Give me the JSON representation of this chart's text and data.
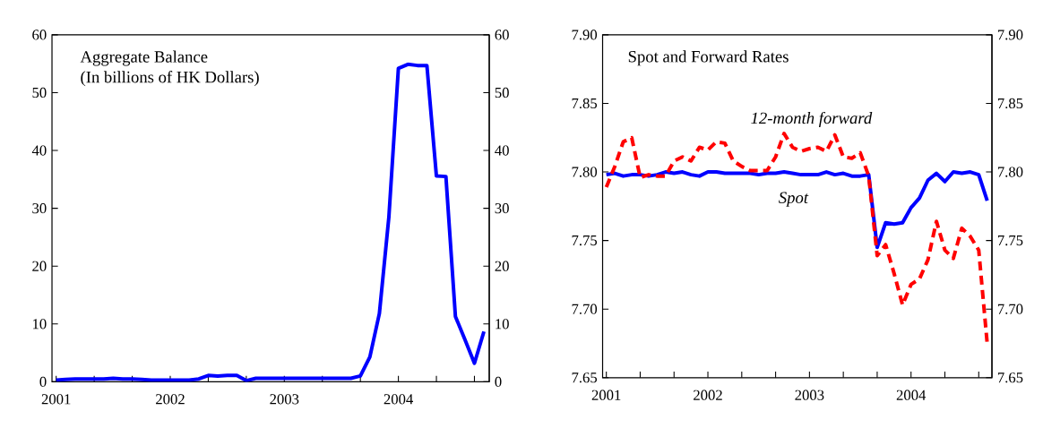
{
  "chart_data": [
    {
      "type": "line",
      "title": "Aggregate Balance",
      "subtitle": "(In billions of HK Dollars)",
      "x": [
        "2001-01",
        "2001-02",
        "2001-03",
        "2001-04",
        "2001-05",
        "2001-06",
        "2001-07",
        "2001-08",
        "2001-09",
        "2001-10",
        "2001-11",
        "2001-12",
        "2002-01",
        "2002-02",
        "2002-03",
        "2002-04",
        "2002-05",
        "2002-06",
        "2002-07",
        "2002-08",
        "2002-09",
        "2002-10",
        "2002-11",
        "2002-12",
        "2003-01",
        "2003-02",
        "2003-03",
        "2003-04",
        "2003-05",
        "2003-06",
        "2003-07",
        "2003-08",
        "2003-09",
        "2003-10",
        "2003-11",
        "2003-12",
        "2004-01",
        "2004-02",
        "2004-03",
        "2004-04",
        "2004-05",
        "2004-06",
        "2004-07",
        "2004-08",
        "2004-09",
        "2004-10"
      ],
      "series": [
        {
          "color": "#0000ff",
          "values": [
            0.3,
            0.4,
            0.5,
            0.5,
            0.5,
            0.5,
            0.6,
            0.5,
            0.5,
            0.4,
            0.3,
            0.3,
            0.3,
            0.3,
            0.3,
            0.5,
            1.1,
            1.0,
            1.1,
            1.1,
            0.2,
            0.6,
            0.6,
            0.6,
            0.6,
            0.6,
            0.6,
            0.6,
            0.6,
            0.6,
            0.6,
            0.6,
            1.0,
            4.3,
            11.8,
            28.5,
            54.2,
            54.9,
            54.7,
            54.7,
            35.6,
            35.5,
            11.3,
            7.3,
            3.2,
            8.7
          ]
        }
      ],
      "xlim": [
        "2000-12-18",
        "2004-10-18"
      ],
      "xticks": [
        {
          "value": "2001-01",
          "label": "2001"
        },
        {
          "value": "2001-05",
          "label": null
        },
        {
          "value": "2001-09",
          "label": null
        },
        {
          "value": "2002-01",
          "label": "2002"
        },
        {
          "value": "2002-05",
          "label": null
        },
        {
          "value": "2002-09",
          "label": null
        },
        {
          "value": "2003-01",
          "label": "2003"
        },
        {
          "value": "2003-05",
          "label": null
        },
        {
          "value": "2003-09",
          "label": null
        },
        {
          "value": "2004-01",
          "label": "2004"
        },
        {
          "value": "2004-05",
          "label": null
        },
        {
          "value": "2004-09",
          "label": null
        }
      ],
      "ylim": [
        0,
        60
      ],
      "yticks": [
        0,
        10,
        20,
        30,
        40,
        50,
        60
      ],
      "y2lim": [
        0,
        60
      ],
      "y2ticks": [
        0,
        10,
        20,
        30,
        40,
        50,
        60
      ],
      "grid": false,
      "legend": false,
      "marker": "none"
    },
    {
      "type": "line",
      "title": "Spot and Forward Rates",
      "x": [
        "2001-01",
        "2001-02",
        "2001-03",
        "2001-04",
        "2001-05",
        "2001-06",
        "2001-07",
        "2001-08",
        "2001-09",
        "2001-10",
        "2001-11",
        "2001-12",
        "2002-01",
        "2002-02",
        "2002-03",
        "2002-04",
        "2002-05",
        "2002-06",
        "2002-07",
        "2002-08",
        "2002-09",
        "2002-10",
        "2002-11",
        "2002-12",
        "2003-01",
        "2003-02",
        "2003-03",
        "2003-04",
        "2003-05",
        "2003-06",
        "2003-07",
        "2003-08",
        "2003-09",
        "2003-10",
        "2003-11",
        "2003-12",
        "2004-01",
        "2004-02",
        "2004-03",
        "2004-04",
        "2004-05",
        "2004-06",
        "2004-07",
        "2004-08",
        "2004-09",
        "2004-10"
      ],
      "series": [
        {
          "name": "Spot",
          "color": "#0000ff",
          "line_style": "solid",
          "values": [
            7.798,
            7.799,
            7.797,
            7.798,
            7.798,
            7.797,
            7.798,
            7.8,
            7.799,
            7.8,
            7.798,
            7.797,
            7.8,
            7.8,
            7.799,
            7.799,
            7.799,
            7.799,
            7.798,
            7.799,
            7.799,
            7.8,
            7.799,
            7.798,
            7.798,
            7.798,
            7.8,
            7.798,
            7.799,
            7.797,
            7.797,
            7.798,
            7.745,
            7.763,
            7.762,
            7.763,
            7.774,
            7.781,
            7.794,
            7.799,
            7.793,
            7.8,
            7.799,
            7.8,
            7.798,
            7.779
          ]
        },
        {
          "name": "12-month forward",
          "color": "#ff0000",
          "line_style": "dashed",
          "values": [
            7.789,
            7.804,
            7.822,
            7.825,
            7.796,
            7.798,
            7.797,
            7.797,
            7.808,
            7.811,
            7.808,
            7.818,
            7.816,
            7.822,
            7.821,
            7.808,
            7.804,
            7.801,
            7.801,
            7.801,
            7.811,
            7.828,
            7.818,
            7.815,
            7.817,
            7.818,
            7.815,
            7.827,
            7.811,
            7.81,
            7.814,
            7.797,
            7.739,
            7.747,
            7.726,
            7.703,
            7.718,
            7.722,
            7.736,
            7.764,
            7.743,
            7.737,
            7.759,
            7.753,
            7.743,
            7.675
          ]
        }
      ],
      "xlim": [
        "2000-12-18",
        "2004-10-18"
      ],
      "xticks": [
        {
          "value": "2001-01",
          "label": "2001"
        },
        {
          "value": "2001-05",
          "label": null
        },
        {
          "value": "2001-09",
          "label": null
        },
        {
          "value": "2002-01",
          "label": "2002"
        },
        {
          "value": "2002-05",
          "label": null
        },
        {
          "value": "2002-09",
          "label": null
        },
        {
          "value": "2003-01",
          "label": "2003"
        },
        {
          "value": "2003-05",
          "label": null
        },
        {
          "value": "2003-09",
          "label": null
        },
        {
          "value": "2004-01",
          "label": "2004"
        },
        {
          "value": "2004-05",
          "label": null
        },
        {
          "value": "2004-09",
          "label": null
        }
      ],
      "ylim": [
        7.65,
        7.9
      ],
      "yticks": [
        {
          "value": 7.65,
          "label": "7.65"
        },
        {
          "value": 7.7,
          "label": "7.70"
        },
        {
          "value": 7.75,
          "label": "7.75"
        },
        {
          "value": 7.8,
          "label": "7.80"
        },
        {
          "value": 7.85,
          "label": "7.85"
        },
        {
          "value": 7.9,
          "label": "7.90"
        }
      ],
      "y2lim": [
        7.65,
        7.9
      ],
      "y2ticks": [
        {
          "value": 7.65,
          "label": "7.65"
        },
        {
          "value": 7.7,
          "label": "7.70"
        },
        {
          "value": 7.75,
          "label": "7.75"
        },
        {
          "value": 7.8,
          "label": "7.80"
        },
        {
          "value": 7.85,
          "label": "7.85"
        },
        {
          "value": 7.9,
          "label": "7.90"
        }
      ],
      "grid": false,
      "legend": false,
      "marker": "none"
    }
  ]
}
